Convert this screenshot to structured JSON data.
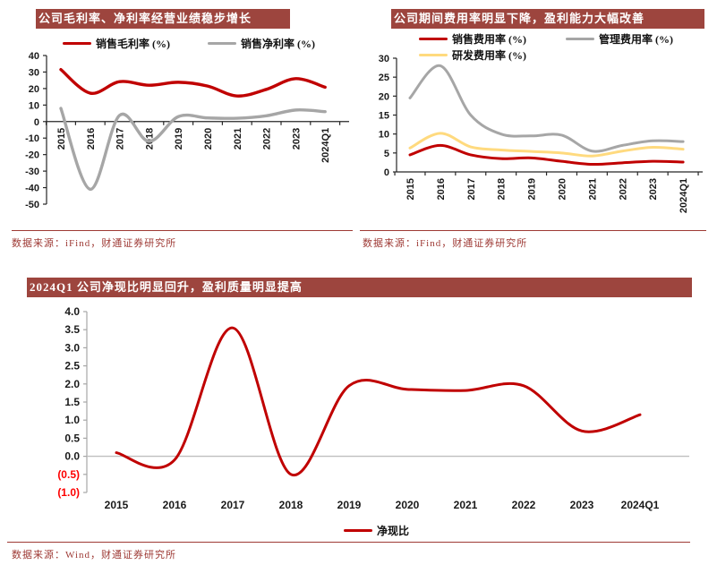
{
  "colors": {
    "title_bar_bg": "#9d453e",
    "title_text": "#ffffff",
    "source_text": "#9e3a35",
    "red_line": "#c00000",
    "gray_line": "#a6a6a6",
    "yellow_line": "#ffda7e",
    "top_axis": "#262626",
    "bottom_axis": "#a6a6a6",
    "zero_line_bottom": "#bfbfbf",
    "negative_tick_label": "#fe0000"
  },
  "figures": [
    {
      "title": "公司毛利率、净利率经营业绩稳步增长",
      "source": "数据来源：iFind，财通证券研究所"
    },
    {
      "title": "公司期间费用率明显下降，盈利能力大幅改善",
      "source": "数据来源：iFind，财通证券研究所"
    },
    {
      "title": "2024Q1 公司净现比明显回升，盈利质量明显提高",
      "source": "数据来源：Wind，财通证券研究所"
    }
  ],
  "chart_data": [
    {
      "type": "line",
      "title": "公司毛利率、净利率经营业绩稳步增长",
      "categories": [
        "2015",
        "2016",
        "2017",
        "2018",
        "2019",
        "2020",
        "2021",
        "2022",
        "2023",
        "2024Q1"
      ],
      "series": [
        {
          "name": "销售毛利率 (%)",
          "color": "#c00000",
          "values": [
            31.5,
            17.2,
            24.2,
            22.0,
            23.8,
            21.5,
            15.5,
            19.5,
            26.0,
            20.8
          ]
        },
        {
          "name": "销售净利率 (%)",
          "color": "#a6a6a6",
          "values": [
            8.0,
            -41.0,
            3.8,
            -12.0,
            3.0,
            2.2,
            2.0,
            3.5,
            7.0,
            6.0
          ]
        }
      ],
      "ylim": [
        -50,
        40
      ],
      "ytick_step": 10,
      "legend_position": "top",
      "grid": false,
      "x_labels_rotated": true
    },
    {
      "type": "line",
      "title": "公司期间费用率明显下降，盈利能力大幅改善",
      "categories": [
        "2015",
        "2016",
        "2017",
        "2018",
        "2019",
        "2020",
        "2021",
        "2022",
        "2023",
        "2024Q1"
      ],
      "series": [
        {
          "name": "销售费用率 (%)",
          "color": "#c00000",
          "values": [
            4.5,
            7.0,
            4.5,
            3.5,
            3.7,
            2.8,
            2.0,
            2.4,
            2.8,
            2.6
          ]
        },
        {
          "name": "管理费用率 (%)",
          "color": "#a6a6a6",
          "values": [
            19.5,
            28.0,
            15.0,
            10.0,
            9.5,
            9.7,
            5.5,
            7.0,
            8.2,
            8.0
          ]
        },
        {
          "name": "研发费用率 (%)",
          "color": "#ffda7e",
          "values": [
            6.3,
            10.2,
            6.6,
            5.8,
            5.4,
            5.0,
            4.2,
            5.5,
            6.5,
            6.0
          ]
        }
      ],
      "ylim": [
        0,
        30
      ],
      "ytick_step": 5,
      "legend_position": "top",
      "grid": false,
      "x_labels_rotated": true
    },
    {
      "type": "line",
      "title": "2024Q1 公司净现比明显回升，盈利质量明显提高",
      "categories": [
        "2015",
        "2016",
        "2017",
        "2018",
        "2019",
        "2020",
        "2021",
        "2022",
        "2023",
        "2024Q1"
      ],
      "series": [
        {
          "name": "净现比",
          "color": "#c00000",
          "values": [
            0.1,
            -0.1,
            3.55,
            -0.5,
            1.95,
            1.85,
            1.82,
            1.95,
            0.7,
            1.15
          ]
        }
      ],
      "ylim": [
        -1.0,
        4.0
      ],
      "ytick_step": 0.5,
      "ytick_labels": [
        "4.0",
        "3.5",
        "3.0",
        "2.5",
        "2.0",
        "1.5",
        "1.0",
        "0.5",
        "0.0",
        "(0.5)",
        "(1.0)"
      ],
      "legend_position": "bottom",
      "grid": false,
      "x_labels_rotated": false
    }
  ]
}
